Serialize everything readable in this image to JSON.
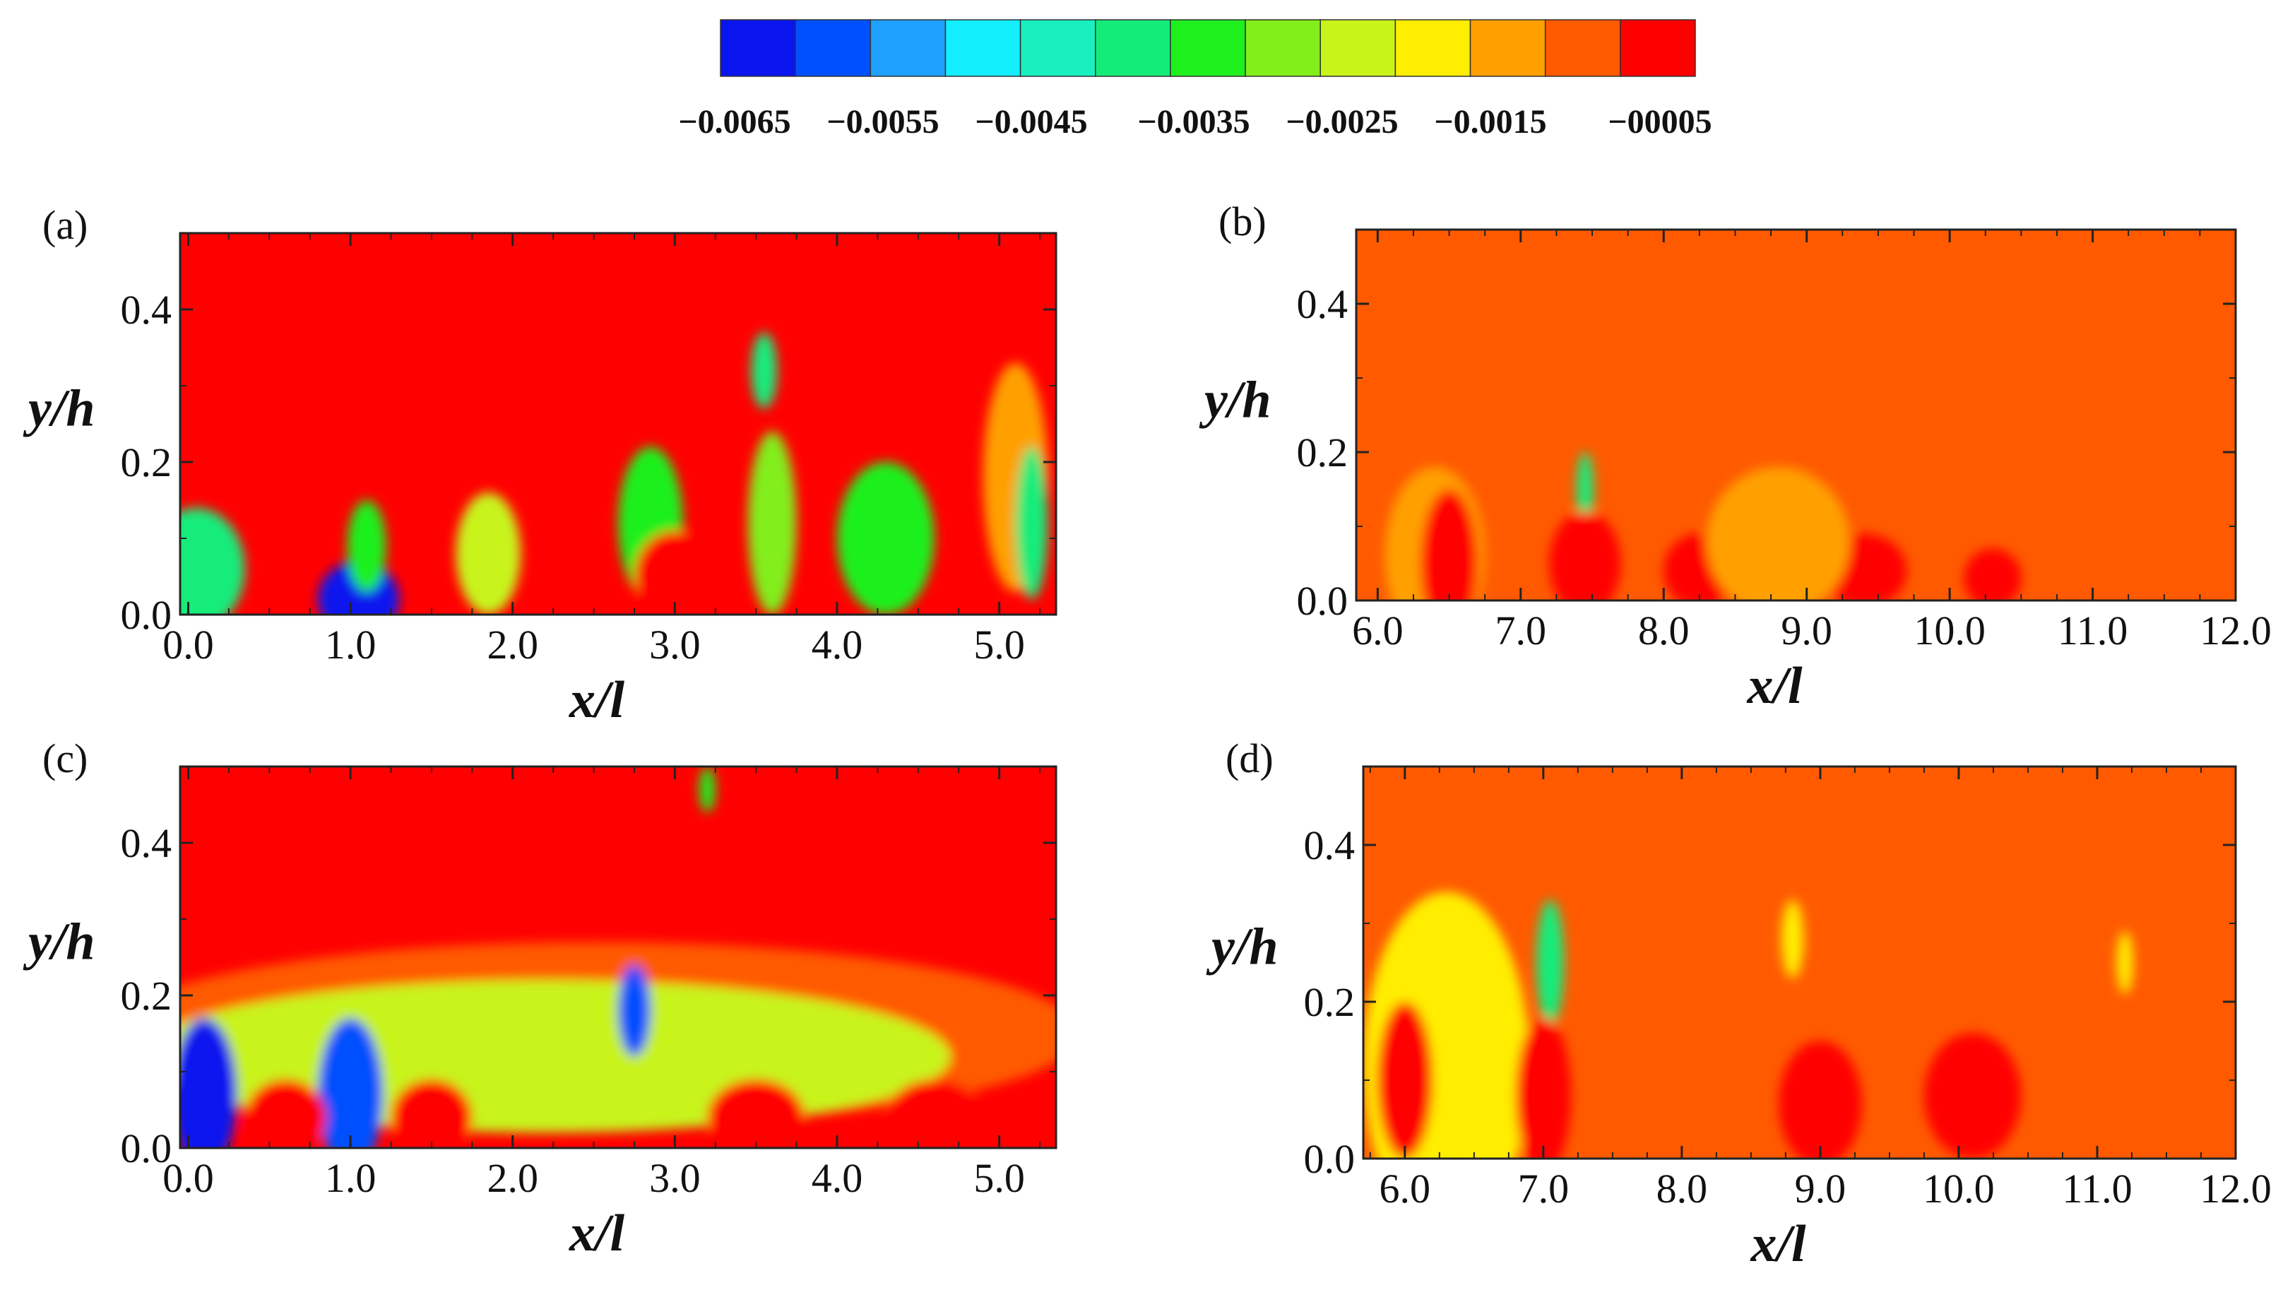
{
  "chart_data": {
    "type": "contour",
    "title": "",
    "colorbar": {
      "labels": [
        "−0.0065",
        "−0.0055",
        "−0.0045",
        "−0.0035",
        "−0.0025",
        "−0.0015",
        "−00005"
      ],
      "colors": [
        "#0a14ee",
        "#0050ff",
        "#1ea0ff",
        "#12eefb",
        "#18f0c0",
        "#14ec7a",
        "#1ef01e",
        "#82ee1a",
        "#c8f41a",
        "#ffee00",
        "#ffa000",
        "#ff5a00",
        "#ff0000"
      ]
    },
    "panels": [
      {
        "label": "(a)",
        "xlabel": "x/l",
        "ylabel": "y/h",
        "xlim": [
          -0.05,
          5.35
        ],
        "ylim": [
          0.0,
          0.5
        ],
        "xticks": [
          "0.0",
          "1.0",
          "2.0",
          "3.0",
          "4.0",
          "5.0"
        ],
        "yticks": [
          "0.0",
          "0.2",
          "0.4"
        ],
        "background": "#ff0000",
        "blobs": [
          {
            "x": 1.05,
            "y": 0.02,
            "rx": 0.25,
            "ry": 0.05,
            "color": "#0a14ee"
          },
          {
            "x": 0.05,
            "y": 0.06,
            "rx": 0.3,
            "ry": 0.08,
            "color": "#14ec7a"
          },
          {
            "x": 1.1,
            "y": 0.09,
            "rx": 0.12,
            "ry": 0.06,
            "color": "#1ef01e"
          },
          {
            "x": 1.85,
            "y": 0.08,
            "rx": 0.2,
            "ry": 0.08,
            "color": "#c8f41a"
          },
          {
            "x": 2.85,
            "y": 0.12,
            "rx": 0.2,
            "ry": 0.1,
            "color": "#1ef01e"
          },
          {
            "x": 3.0,
            "y": 0.05,
            "rx": 0.25,
            "ry": 0.06,
            "color": "#ff0000"
          },
          {
            "x": 3.55,
            "y": 0.32,
            "rx": 0.08,
            "ry": 0.05,
            "color": "#14ec7a"
          },
          {
            "x": 3.6,
            "y": 0.12,
            "rx": 0.15,
            "ry": 0.12,
            "color": "#82ee1a"
          },
          {
            "x": 4.3,
            "y": 0.1,
            "rx": 0.3,
            "ry": 0.1,
            "color": "#1ef01e"
          },
          {
            "x": 5.1,
            "y": 0.18,
            "rx": 0.2,
            "ry": 0.15,
            "color": "#ffa000"
          },
          {
            "x": 5.2,
            "y": 0.12,
            "rx": 0.1,
            "ry": 0.1,
            "color": "#14ec7a"
          }
        ]
      },
      {
        "label": "(b)",
        "xlabel": "x/l",
        "ylabel": "y/h",
        "xlim": [
          5.85,
          12.0
        ],
        "ylim": [
          0.0,
          0.5
        ],
        "xticks": [
          "6.0",
          "7.0",
          "8.0",
          "9.0",
          "10.0",
          "11.0",
          "12.0"
        ],
        "yticks": [
          "0.0",
          "0.2",
          "0.4"
        ],
        "background": "#ff5a00",
        "blobs": [
          {
            "x": 6.4,
            "y": 0.06,
            "rx": 0.35,
            "ry": 0.12,
            "color": "#ffa000"
          },
          {
            "x": 6.5,
            "y": 0.05,
            "rx": 0.2,
            "ry": 0.1,
            "color": "#ff0000"
          },
          {
            "x": 7.45,
            "y": 0.15,
            "rx": 0.06,
            "ry": 0.05,
            "color": "#14ec7a"
          },
          {
            "x": 7.45,
            "y": 0.05,
            "rx": 0.25,
            "ry": 0.07,
            "color": "#ff0000"
          },
          {
            "x": 8.25,
            "y": 0.04,
            "rx": 0.25,
            "ry": 0.05,
            "color": "#ff0000"
          },
          {
            "x": 9.4,
            "y": 0.04,
            "rx": 0.3,
            "ry": 0.05,
            "color": "#ff0000"
          },
          {
            "x": 10.3,
            "y": 0.03,
            "rx": 0.2,
            "ry": 0.04,
            "color": "#ff0000"
          },
          {
            "x": 8.8,
            "y": 0.08,
            "rx": 0.5,
            "ry": 0.1,
            "color": "#ffa000"
          }
        ]
      },
      {
        "label": "(c)",
        "xlabel": "x/l",
        "ylabel": "y/h",
        "xlim": [
          -0.05,
          5.35
        ],
        "ylim": [
          0.0,
          0.5
        ],
        "xticks": [
          "0.0",
          "1.0",
          "2.0",
          "3.0",
          "4.0",
          "5.0"
        ],
        "yticks": [
          "0.0",
          "0.2",
          "0.4"
        ],
        "background": "#ff0000",
        "blobs": [
          {
            "x": 2.5,
            "y": 0.15,
            "rx": 3.0,
            "ry": 0.12,
            "color": "#ff5a00"
          },
          {
            "x": 2.2,
            "y": 0.12,
            "rx": 2.5,
            "ry": 0.1,
            "color": "#c8f41a"
          },
          {
            "x": 0.1,
            "y": 0.07,
            "rx": 0.2,
            "ry": 0.1,
            "color": "#0a14ee"
          },
          {
            "x": 1.0,
            "y": 0.07,
            "rx": 0.2,
            "ry": 0.1,
            "color": "#0050ff"
          },
          {
            "x": 2.75,
            "y": 0.18,
            "rx": 0.1,
            "ry": 0.06,
            "color": "#0050ff"
          },
          {
            "x": 0.6,
            "y": 0.04,
            "rx": 0.25,
            "ry": 0.05,
            "color": "#ff0000"
          },
          {
            "x": 1.5,
            "y": 0.04,
            "rx": 0.25,
            "ry": 0.05,
            "color": "#ff0000"
          },
          {
            "x": 3.5,
            "y": 0.04,
            "rx": 0.3,
            "ry": 0.05,
            "color": "#ff0000"
          },
          {
            "x": 4.6,
            "y": 0.04,
            "rx": 0.3,
            "ry": 0.05,
            "color": "#ff0000"
          },
          {
            "x": 3.2,
            "y": 0.47,
            "rx": 0.05,
            "ry": 0.03,
            "color": "#1ef01e"
          }
        ]
      },
      {
        "label": "(d)",
        "xlabel": "x/l",
        "ylabel": "y/h",
        "xlim": [
          5.7,
          12.0
        ],
        "ylim": [
          0.0,
          0.5
        ],
        "xticks": [
          "6.0",
          "7.0",
          "8.0",
          "9.0",
          "10.0",
          "11.0",
          "12.0"
        ],
        "yticks": [
          "0.0",
          "0.2",
          "0.4"
        ],
        "background": "#ff5a00",
        "blobs": [
          {
            "x": 6.3,
            "y": 0.12,
            "rx": 0.6,
            "ry": 0.22,
            "color": "#ffee00"
          },
          {
            "x": 6.0,
            "y": 0.1,
            "rx": 0.2,
            "ry": 0.1,
            "color": "#ff0000"
          },
          {
            "x": 7.05,
            "y": 0.25,
            "rx": 0.1,
            "ry": 0.08,
            "color": "#14ec7a"
          },
          {
            "x": 7.0,
            "y": 0.08,
            "rx": 0.2,
            "ry": 0.1,
            "color": "#ff0000"
          },
          {
            "x": 8.8,
            "y": 0.28,
            "rx": 0.08,
            "ry": 0.05,
            "color": "#ffee00"
          },
          {
            "x": 9.0,
            "y": 0.07,
            "rx": 0.3,
            "ry": 0.08,
            "color": "#ff0000"
          },
          {
            "x": 10.1,
            "y": 0.08,
            "rx": 0.35,
            "ry": 0.08,
            "color": "#ff0000"
          },
          {
            "x": 11.2,
            "y": 0.25,
            "rx": 0.06,
            "ry": 0.04,
            "color": "#ffee00"
          }
        ]
      }
    ]
  }
}
